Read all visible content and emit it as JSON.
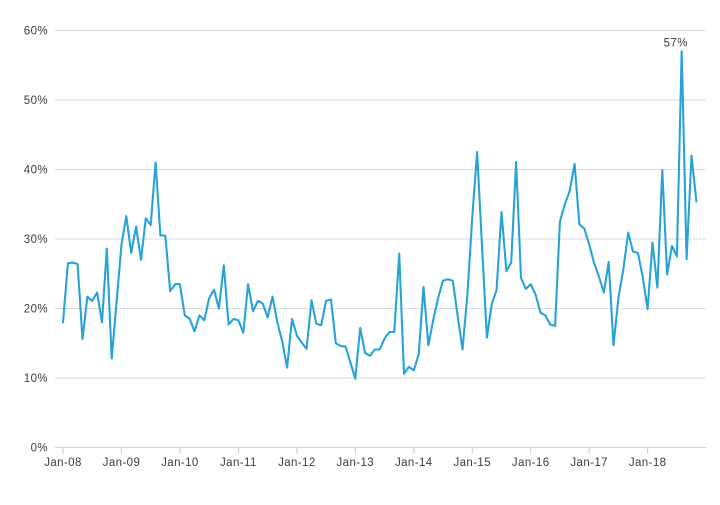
{
  "chart_data": {
    "type": "line",
    "title": "",
    "x_start_label": "Jan-2008",
    "x_end_label": "Nov-2018",
    "x_tick_labels": [
      "Jan-08",
      "Jan-09",
      "Jan-10",
      "Jan-11",
      "Jan-12",
      "Jan-13",
      "Jan-14",
      "Jan-15",
      "Jan-16",
      "Jan-17",
      "Jan-18"
    ],
    "y_tick_labels": [
      "0%",
      "10%",
      "20%",
      "30%",
      "40%",
      "50%",
      "60%"
    ],
    "ylim": [
      0,
      60
    ],
    "grid": true,
    "legend": false,
    "background": "#ffffff",
    "series": [
      {
        "name": "monthly-percentage",
        "color": "#29A3D7",
        "values": [
          18.0,
          26.5,
          26.6,
          26.4,
          15.6,
          21.7,
          21.1,
          22.3,
          18.0,
          28.6,
          12.8,
          21.0,
          29.2,
          33.3,
          28.0,
          31.8,
          27.0,
          33.0,
          32.0,
          41.0,
          30.5,
          30.5,
          22.5,
          23.5,
          23.5,
          19.0,
          18.5,
          16.7,
          19.0,
          18.3,
          21.5,
          22.7,
          20.0,
          26.2,
          17.7,
          18.5,
          18.3,
          16.5,
          23.5,
          19.6,
          21.1,
          20.7,
          18.7,
          21.7,
          18.0,
          15.3,
          11.5,
          18.5,
          16.1,
          15.1,
          14.2,
          21.2,
          17.8,
          17.6,
          21.1,
          21.3,
          15.0,
          14.6,
          14.5,
          12.2,
          9.9,
          17.2,
          13.6,
          13.2,
          14.1,
          14.1,
          15.7,
          16.6,
          16.6,
          27.9,
          10.6,
          11.6,
          11.1,
          13.4,
          23.1,
          14.7,
          18.4,
          21.5,
          24.0,
          24.2,
          24.0,
          19.0,
          14.1,
          22.0,
          33.0,
          42.5,
          29.0,
          15.8,
          20.6,
          22.7,
          33.9,
          25.4,
          26.6,
          41.1,
          24.4,
          22.8,
          23.5,
          22.0,
          19.4,
          19.0,
          17.7,
          17.5,
          32.5,
          35.0,
          36.9,
          40.8,
          32.1,
          31.5,
          29.2,
          26.6,
          24.6,
          22.3,
          26.7,
          14.7,
          21.5,
          25.6,
          30.9,
          28.2,
          28.0,
          24.5,
          19.9,
          29.5,
          23.0,
          39.9,
          24.9,
          29.0,
          27.5,
          57.0,
          27.1,
          42.0,
          35.4
        ]
      }
    ],
    "annotation": {
      "text": "57%",
      "point_index": 127,
      "value": 57
    },
    "colors": {
      "line": "#29A3D7",
      "grid": "#d9d9d9",
      "axis": "#d4d4d4",
      "tick": "#c9c9c9",
      "label": "#3d3d3d"
    }
  }
}
